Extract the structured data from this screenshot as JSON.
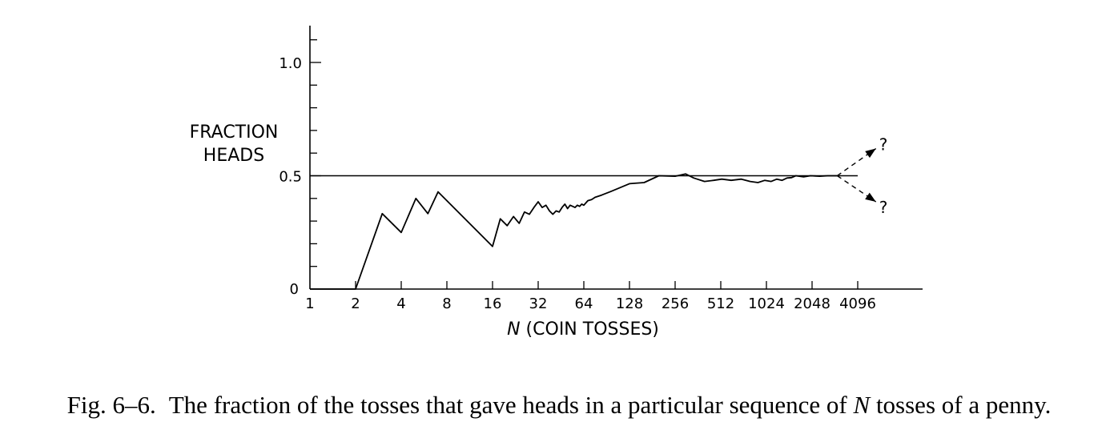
{
  "chart_data": {
    "type": "line",
    "ylabel_lines": [
      "FRACTION",
      "HEADS"
    ],
    "xlabel_var": "N",
    "xlabel_rest": " (COIN TOSSES)",
    "x_scale": "log2",
    "x_ticks": [
      1,
      2,
      4,
      8,
      16,
      32,
      64,
      128,
      256,
      512,
      1024,
      2048,
      4096
    ],
    "x_tick_labels": [
      "1",
      "2",
      "4",
      "8",
      "16",
      "32",
      "64",
      "128",
      "256",
      "512",
      "1024",
      "2048",
      "4096"
    ],
    "y_ticks": [
      0,
      0.5,
      1.0
    ],
    "y_tick_labels": [
      "0",
      "0.5",
      "1.0"
    ],
    "ylim": [
      0,
      1.15
    ],
    "reference_line": {
      "y": 0.5,
      "x_range": [
        1,
        4096
      ]
    },
    "series": [
      {
        "x": [
          1,
          2,
          3,
          4,
          5,
          6,
          7,
          16,
          18,
          20,
          22,
          24,
          26,
          28,
          30,
          32,
          34,
          36,
          38,
          40,
          42,
          44,
          46,
          48,
          50,
          52,
          54,
          56,
          58,
          60,
          62,
          64,
          68,
          72,
          76,
          80,
          84,
          88,
          96,
          128,
          160,
          200,
          256,
          300,
          340,
          400,
          460,
          520,
          600,
          700,
          800,
          900,
          1000,
          1100,
          1200,
          1300,
          1400,
          1500,
          1600,
          1800,
          2000,
          2300,
          2600,
          3000
        ],
        "y": [
          0,
          0,
          0.333,
          0.25,
          0.4,
          0.333,
          0.429,
          0.188,
          0.31,
          0.28,
          0.32,
          0.29,
          0.34,
          0.33,
          0.36,
          0.385,
          0.36,
          0.37,
          0.345,
          0.33,
          0.345,
          0.34,
          0.36,
          0.375,
          0.355,
          0.37,
          0.365,
          0.36,
          0.37,
          0.365,
          0.375,
          0.37,
          0.39,
          0.395,
          0.405,
          0.41,
          0.415,
          0.42,
          0.43,
          0.465,
          0.47,
          0.5,
          0.498,
          0.508,
          0.49,
          0.475,
          0.48,
          0.485,
          0.48,
          0.485,
          0.475,
          0.47,
          0.48,
          0.475,
          0.485,
          0.48,
          0.49,
          0.492,
          0.5,
          0.495,
          0.5,
          0.498,
          0.5,
          0.5
        ]
      }
    ],
    "extrapolation": {
      "from": [
        3000,
        0.5
      ],
      "to": [
        [
          5400,
          0.62
        ],
        [
          5400,
          0.385
        ]
      ],
      "labels": [
        "?",
        "?"
      ]
    }
  },
  "caption": {
    "lead": "Fig. 6–6.",
    "text_before": "The fraction of the tosses that gave heads in a particular sequence of ",
    "var": "N",
    "text_after": " tosses of a penny."
  }
}
